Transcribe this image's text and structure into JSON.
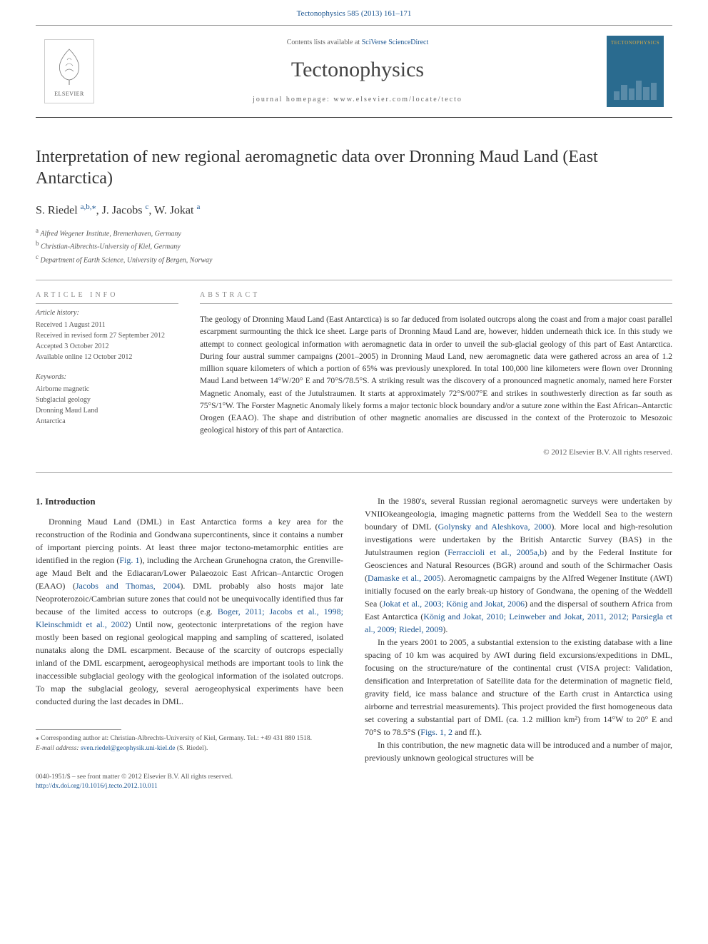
{
  "colors": {
    "link": "#1a5490",
    "text": "#333333",
    "muted": "#666666",
    "border": "#aaaaaa",
    "journal_thumb_bg": "#2a6b8f",
    "journal_thumb_accent": "#d4a848"
  },
  "header": {
    "citation": "Tectonophysics 585 (2013) 161–171",
    "contents_prefix": "Contents lists available at ",
    "contents_link": "SciVerse ScienceDirect",
    "journal_title": "Tectonophysics",
    "homepage_prefix": "journal homepage: ",
    "homepage": "www.elsevier.com/locate/tecto",
    "publisher": "ELSEVIER",
    "thumb_label": "TECTONOPHYSICS"
  },
  "article": {
    "title": "Interpretation of new regional aeromagnetic data over Dronning Maud Land (East Antarctica)",
    "authors": [
      {
        "name": "S. Riedel",
        "marks": "a,b,",
        "corresponding": true
      },
      {
        "name": "J. Jacobs",
        "marks": "c",
        "corresponding": false
      },
      {
        "name": "W. Jokat",
        "marks": "a",
        "corresponding": false
      }
    ],
    "affiliations": [
      {
        "mark": "a",
        "text": "Alfred Wegener Institute, Bremerhaven, Germany"
      },
      {
        "mark": "b",
        "text": "Christian-Albrechts-University of Kiel, Germany"
      },
      {
        "mark": "c",
        "text": "Department of Earth Science, University of Bergen, Norway"
      }
    ]
  },
  "info": {
    "label": "article info",
    "history_heading": "Article history:",
    "history": [
      "Received 1 August 2011",
      "Received in revised form 27 September 2012",
      "Accepted 3 October 2012",
      "Available online 12 October 2012"
    ],
    "keywords_heading": "Keywords:",
    "keywords": [
      "Airborne magnetic",
      "Subglacial geology",
      "Dronning Maud Land",
      "Antarctica"
    ]
  },
  "abstract": {
    "label": "abstract",
    "text": "The geology of Dronning Maud Land (East Antarctica) is so far deduced from isolated outcrops along the coast and from a major coast parallel escarpment surmounting the thick ice sheet. Large parts of Dronning Maud Land are, however, hidden underneath thick ice. In this study we attempt to connect geological information with aeromagnetic data in order to unveil the sub-glacial geology of this part of East Antarctica. During four austral summer campaigns (2001–2005) in Dronning Maud Land, new aeromagnetic data were gathered across an area of 1.2 million square kilometers of which a portion of 65% was previously unexplored. In total 100,000 line kilometers were flown over Dronning Maud Land between 14°W/20° E and 70°S/78.5°S. A striking result was the discovery of a pronounced magnetic anomaly, named here Forster Magnetic Anomaly, east of the Jutulstraumen. It starts at approximately 72°S/007°E and strikes in southwesterly direction as far south as 75°S/1°W. The Forster Magnetic Anomaly likely forms a major tectonic block boundary and/or a suture zone within the East African–Antarctic Orogen (EAAO). The shape and distribution of other magnetic anomalies are discussed in the context of the Proterozoic to Mesozoic geological history of this part of Antarctica.",
    "copyright": "© 2012 Elsevier B.V. All rights reserved."
  },
  "body": {
    "section_heading": "1. Introduction",
    "col1": {
      "p1_a": "Dronning Maud Land (DML) in East Antarctica forms a key area for the reconstruction of the Rodinia and Gondwana supercontinents, since it contains a number of important piercing points. At least three major tectono-metamorphic entities are identified in the region (",
      "p1_fig": "Fig. 1",
      "p1_b": "), including the Archean Grunehogna craton, the Grenville-age Maud Belt and the Ediacaran/Lower Palaeozoic East African–Antarctic Orogen (EAAO) (",
      "p1_cite1": "Jacobs and Thomas, 2004",
      "p1_c": "). DML probably also hosts major late Neoproterozoic/Cambrian suture zones that could not be unequivocally identified thus far because of the limited access to outcrops (e.g. ",
      "p1_cite2": "Boger, 2011; Jacobs et al., 1998; Kleinschmidt et al., 2002",
      "p1_d": ") Until now, geotectonic interpretations of the region have mostly been based on regional geological mapping and sampling of scattered, isolated nunataks along the DML escarpment. Because of the scarcity of outcrops especially inland of the DML escarpment, aerogeophysical methods are important tools to link the inaccessible subglacial geology with the geological information of the isolated outcrops. To map the subglacial geology, several aerogeophysical experiments have been conducted during the last decades in DML."
    },
    "col2": {
      "p2_a": "In the 1980's, several Russian regional aeromagnetic surveys were undertaken by VNIIOkeangeologia, imaging magnetic patterns from the Weddell Sea to the western boundary of DML (",
      "p2_cite1": "Golynsky and Aleshkova, 2000",
      "p2_b": "). More local and high-resolution investigations were undertaken by the British Antarctic Survey (BAS) in the Jutulstraumen region (",
      "p2_cite2": "Ferraccioli et al., 2005a,b",
      "p2_c": ") and by the Federal Institute for Geosciences and Natural Resources (BGR) around and south of the Schirmacher Oasis (",
      "p2_cite3": "Damaske et al., 2005",
      "p2_d": "). Aeromagnetic campaigns by the Alfred Wegener Institute (AWI) initially focused on the early break-up history of Gondwana, the opening of the Weddell Sea (",
      "p2_cite4": "Jokat et al., 2003; König and Jokat, 2006",
      "p2_e": ") and the dispersal of southern Africa from East Antarctica (",
      "p2_cite5": "König and Jokat, 2010; Leinweber and Jokat, 2011, 2012; Parsiegla et al., 2009; Riedel, 2009",
      "p2_f": ").",
      "p3_a": "In the years 2001 to 2005, a substantial extension to the existing database with a line spacing of 10 km was acquired by AWI during field excursions/expeditions in DML, focusing on the structure/nature of the continental crust (VISA project: Validation, densification and Interpretation of Satellite data for the determination of magnetic field, gravity field, ice mass balance and structure of the Earth crust in Antarctica using airborne and terrestrial measurements). This project provided the first homogeneous data set covering a substantial part of DML (ca. 1.2 million km²) from 14°W to 20° E and 70°S to 78.5°S (",
      "p3_fig": "Figs. 1, 2",
      "p3_b": " and ff.).",
      "p4": "In this contribution, the new magnetic data will be introduced and a number of major, previously unknown geological structures will be"
    }
  },
  "footnotes": {
    "corresponding": "⁎ Corresponding author at: Christian-Albrechts-University of Kiel, Germany. Tel.: +49 431 880 1518.",
    "email_label": "E-mail address: ",
    "email": "sven.riedel@geophysik.uni-kiel.de",
    "email_author": " (S. Riedel)."
  },
  "footer": {
    "issn_line": "0040-1951/$ – see front matter © 2012 Elsevier B.V. All rights reserved.",
    "doi": "http://dx.doi.org/10.1016/j.tecto.2012.10.011"
  }
}
